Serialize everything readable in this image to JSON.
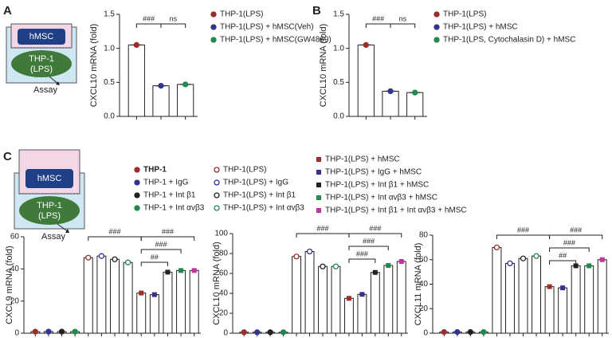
{
  "panel_labels": [
    "A",
    "B",
    "C"
  ],
  "diagrams": {
    "a": {
      "top": "hMSC",
      "bottom": [
        "THP-1",
        "(LPS)"
      ],
      "arrow": "Assay"
    },
    "c": {
      "top": "hMSC",
      "bottom": [
        "THP-1",
        "(LPS)"
      ],
      "arrow": "Assay"
    }
  },
  "chart_data": [
    {
      "type": "bar",
      "ylabel": "CXCL10 mRNA (fold)",
      "categories": [
        null,
        null,
        null
      ],
      "values": [
        1.05,
        0.45,
        0.47
      ],
      "colors": [
        "#9b2f2a",
        "#34348f",
        "#1f8a4c"
      ],
      "markers": [
        "circle",
        "circle",
        "circle"
      ],
      "legend": [
        "THP-1(LPS)",
        "THP-1(LPS) + hMSC(Veh)",
        "THP-1(LPS) + hMSC(GW4869)"
      ],
      "annotations": [
        "###",
        "ns"
      ],
      "ylim": [
        0,
        1.5
      ],
      "yticks": [
        {
          "value": 0,
          "label": "0.0"
        },
        {
          "value": 0.5,
          "label": "0.5"
        },
        {
          "value": 1,
          "label": "1.0"
        },
        {
          "value": 1.5,
          "label": "1.5"
        }
      ]
    },
    {
      "type": "bar",
      "ylabel": "CXCL10 mRNA (fold)",
      "categories": [
        null,
        null,
        null
      ],
      "values": [
        1.05,
        0.37,
        0.35
      ],
      "colors": [
        "#9b2f2a",
        "#34348f",
        "#1f8a4c"
      ],
      "markers": [
        "circle",
        "circle",
        "circle"
      ],
      "legend": [
        "THP-1(LPS)",
        "THP-1(LPS) + hMSC",
        "THP-1(LPS, Cytochalasin D) + hMSC"
      ],
      "annotations": [
        "###",
        "ns"
      ],
      "ylim": [
        0,
        1.5
      ],
      "yticks": [
        {
          "value": 0,
          "label": "0.0"
        },
        {
          "value": 0.5,
          "label": "0.5"
        },
        {
          "value": 1,
          "label": "1.0"
        },
        {
          "value": 1.5,
          "label": "1.5"
        }
      ]
    },
    {
      "type": "bar",
      "ylabel": "CXCL9 mRNA (fold)",
      "categories": [
        null,
        null,
        null,
        null,
        null,
        null,
        null,
        null,
        null,
        null,
        null,
        null,
        null
      ],
      "values": [
        1,
        1,
        1,
        1,
        47,
        48,
        46,
        44,
        25,
        24,
        38,
        39,
        39
      ],
      "colors": [
        "#9b2f2a",
        "#34348f",
        "#222222",
        "#1f8a4c",
        "#9b2f2a",
        "#34348f",
        "#222222",
        "#1f8a4c",
        "#9b2f2a",
        "#34348f",
        "#222222",
        "#1f8a4c",
        "#c2339b"
      ],
      "markers": [
        "circle",
        "circle",
        "circle",
        "circle",
        "open",
        "open",
        "open",
        "open",
        "square",
        "square",
        "square",
        "square",
        "square"
      ],
      "legend": [
        "THP-1",
        "THP-1 + IgG",
        "THP-1 + Int β1",
        "THP-1 + Int αvβ3",
        "THP-1(LPS)",
        "THP-1(LPS) + IgG",
        "THP-1(LPS) + Int β1",
        "THP-1(LPS) + Int αvβ3",
        "THP-1(LPS) + hMSC",
        "THP-1(LPS) + IgG + hMSC",
        "THP-1(LPS) + Int β1 + hMSC",
        "THP-1(LPS) + Int αvβ3 + hMSC",
        "THP-1(LPS) +  Int β1 + Int αvβ3 + hMSC"
      ],
      "annotations": [
        "###",
        "###",
        "###",
        "##"
      ],
      "ylim": [
        0,
        60
      ],
      "yticks": [
        0,
        20,
        40,
        60
      ]
    },
    {
      "type": "bar",
      "ylabel": "CXCL10 mRNA (fold)",
      "categories": [
        null,
        null,
        null,
        null,
        null,
        null,
        null,
        null,
        null,
        null,
        null,
        null,
        null
      ],
      "values": [
        1,
        1,
        1,
        1,
        77,
        82,
        67,
        67,
        35,
        39,
        61,
        68,
        72
      ],
      "colors": [
        "#9b2f2a",
        "#34348f",
        "#222222",
        "#1f8a4c",
        "#9b2f2a",
        "#34348f",
        "#222222",
        "#1f8a4c",
        "#9b2f2a",
        "#34348f",
        "#222222",
        "#1f8a4c",
        "#c2339b"
      ],
      "markers": [
        "circle",
        "circle",
        "circle",
        "circle",
        "open",
        "open",
        "open",
        "open",
        "square",
        "square",
        "square",
        "square",
        "square"
      ],
      "annotations": [
        "###",
        "###",
        "###",
        "###"
      ],
      "ylim": [
        0,
        100
      ],
      "yticks": [
        0,
        20,
        40,
        60,
        80,
        100
      ]
    },
    {
      "type": "bar",
      "ylabel": "CXCL11 mRNA (fold)",
      "categories": [
        null,
        null,
        null,
        null,
        null,
        null,
        null,
        null,
        null,
        null,
        null,
        null,
        null
      ],
      "values": [
        1,
        1,
        1,
        1,
        70,
        57,
        61,
        63,
        38,
        37,
        55,
        55,
        60
      ],
      "colors": [
        "#9b2f2a",
        "#34348f",
        "#222222",
        "#1f8a4c",
        "#9b2f2a",
        "#34348f",
        "#222222",
        "#1f8a4c",
        "#9b2f2a",
        "#34348f",
        "#222222",
        "#1f8a4c",
        "#c2339b"
      ],
      "markers": [
        "circle",
        "circle",
        "circle",
        "circle",
        "open",
        "open",
        "open",
        "open",
        "square",
        "square",
        "square",
        "square",
        "square"
      ],
      "annotations": [
        "###",
        "###",
        "###",
        "##"
      ],
      "ylim": [
        0,
        80
      ],
      "yticks": [
        0,
        20,
        40,
        60,
        80
      ]
    }
  ]
}
